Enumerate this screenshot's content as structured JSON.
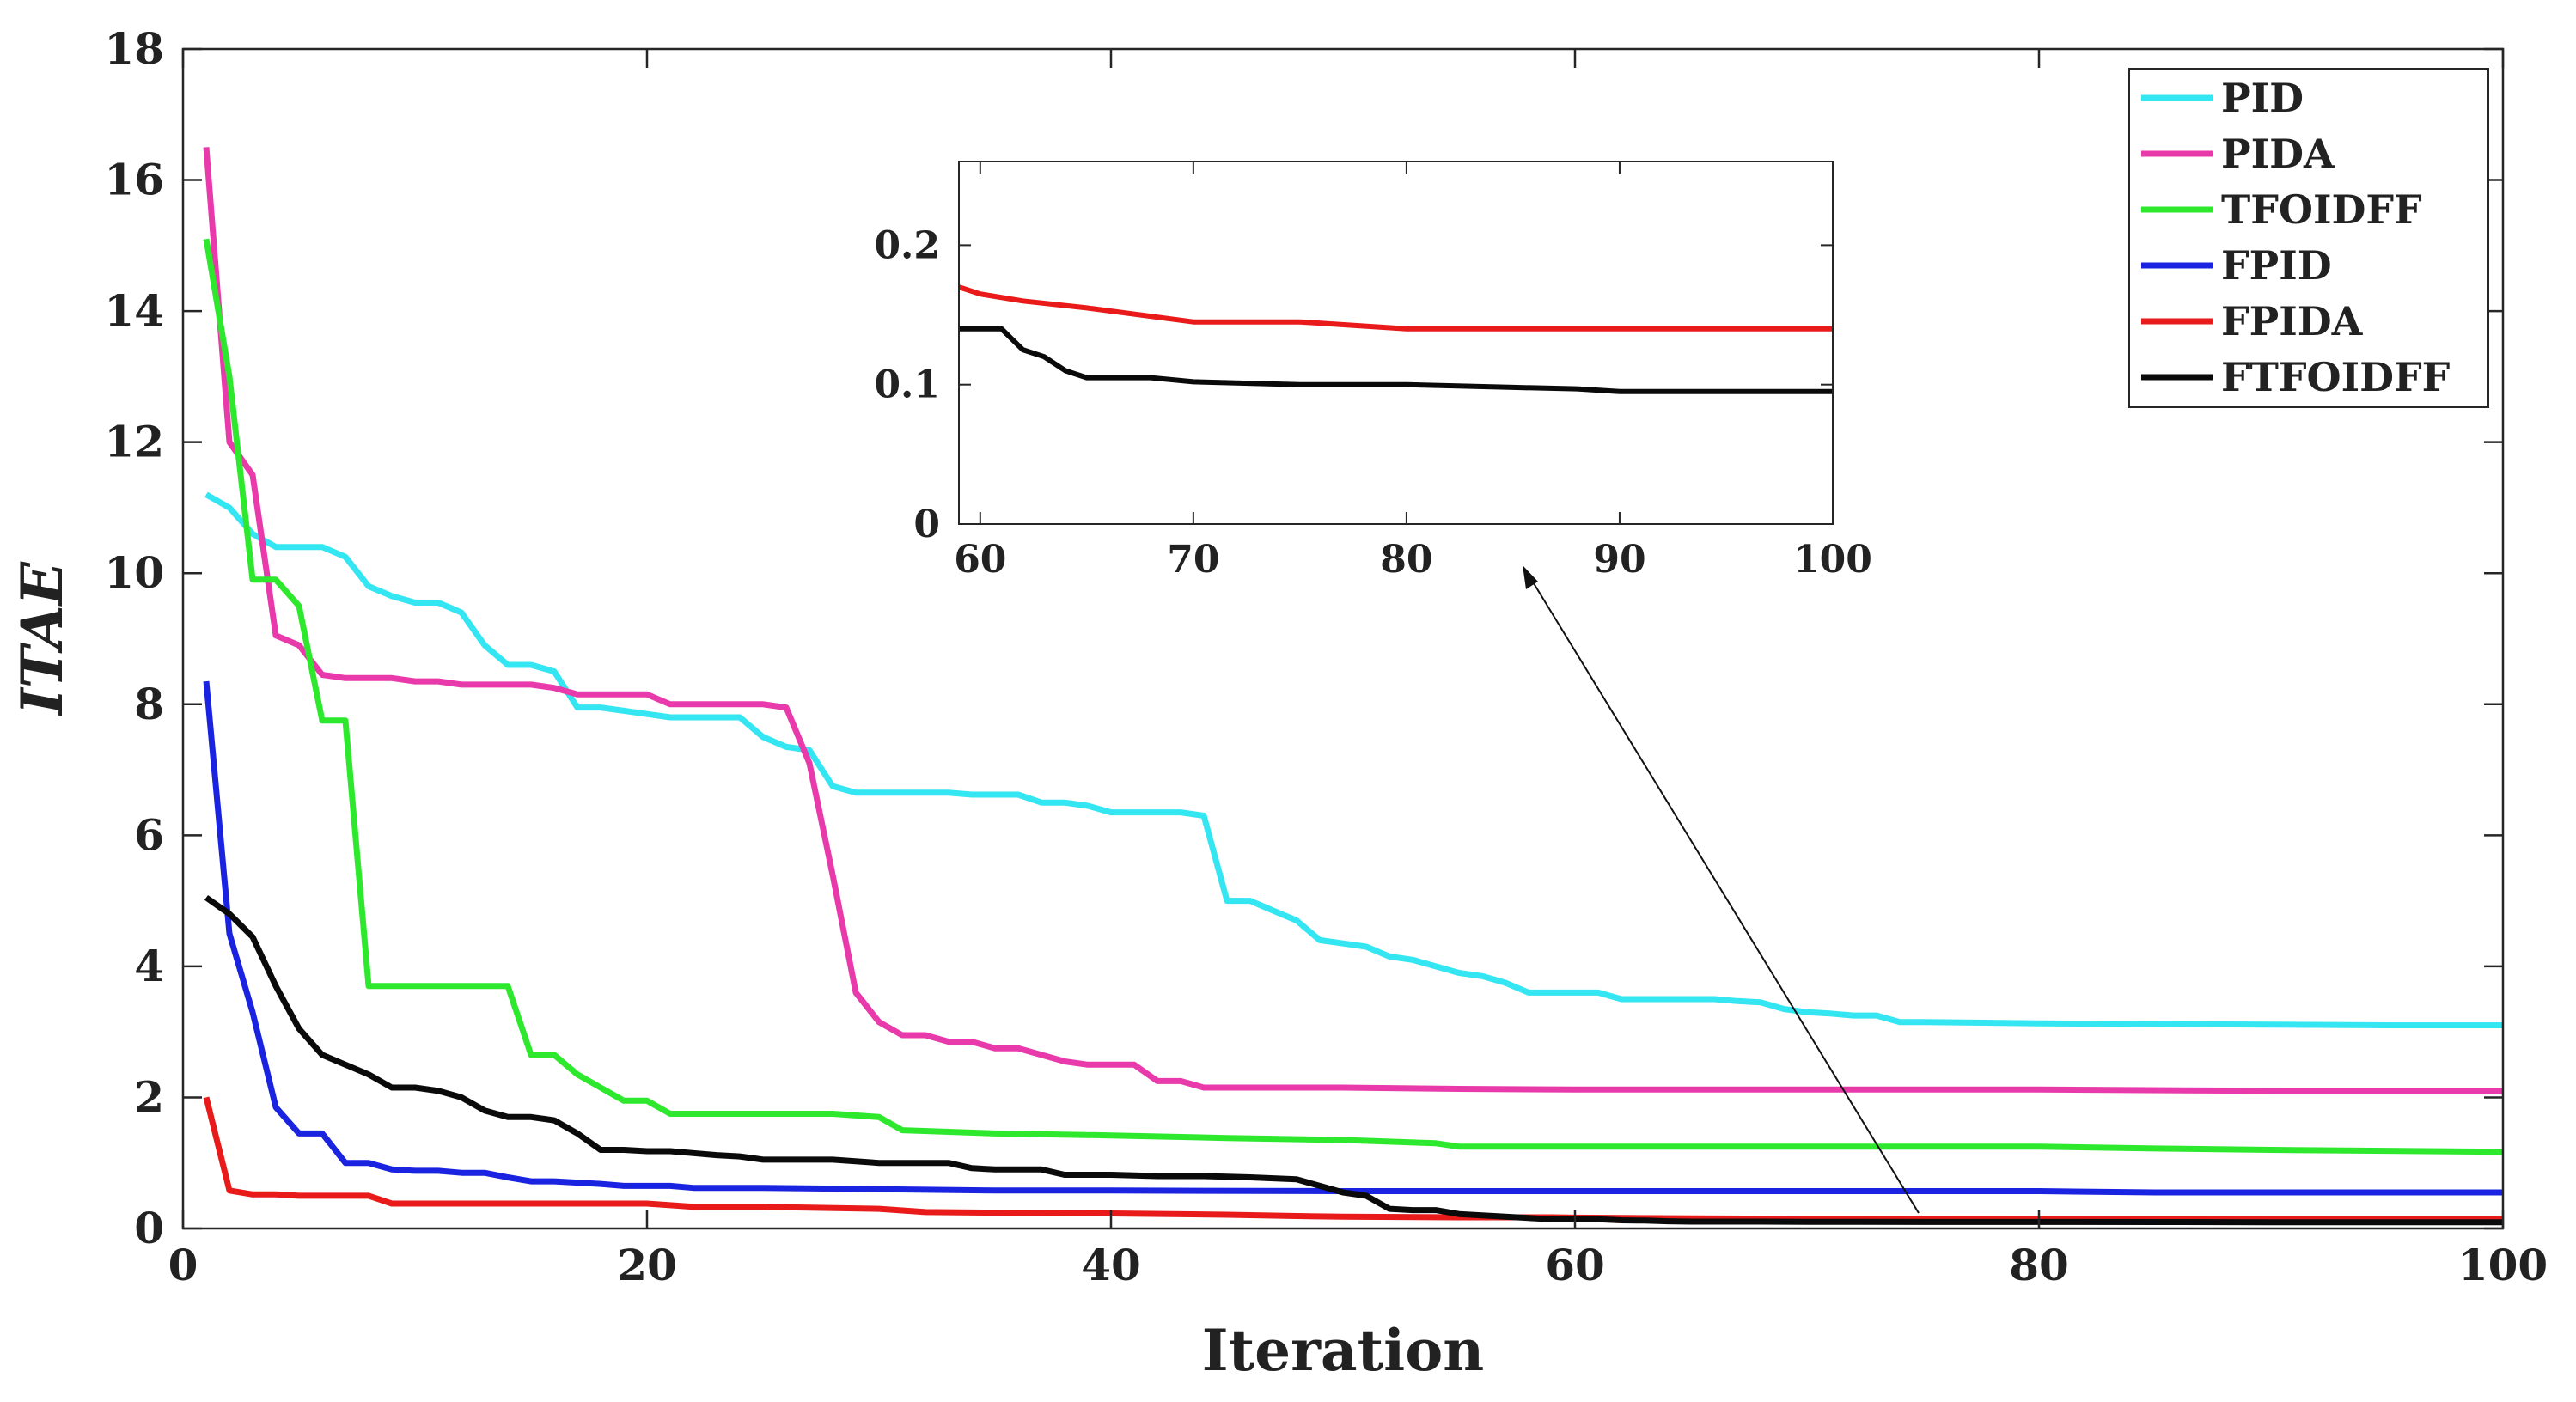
{
  "chart_data": {
    "type": "line",
    "title": "",
    "xlabel": "Iteration",
    "ylabel": "ITAE",
    "xlim": [
      0,
      100
    ],
    "ylim": [
      0,
      18
    ],
    "xticks": [
      "0",
      "20",
      "40",
      "60",
      "80",
      "100"
    ],
    "yticks": [
      "0",
      "2",
      "4",
      "6",
      "8",
      "10",
      "12",
      "14",
      "16",
      "18"
    ],
    "grid": false,
    "legend_position": "top-right",
    "series": [
      {
        "name": "PID",
        "color": "#33e6f2",
        "points": [
          [
            1,
            11.2
          ],
          [
            2,
            11.0
          ],
          [
            3,
            10.6
          ],
          [
            4,
            10.4
          ],
          [
            5,
            10.4
          ],
          [
            6,
            10.4
          ],
          [
            7,
            10.25
          ],
          [
            8,
            9.8
          ],
          [
            9,
            9.65
          ],
          [
            10,
            9.55
          ],
          [
            11,
            9.55
          ],
          [
            12,
            9.4
          ],
          [
            13,
            8.9
          ],
          [
            14,
            8.6
          ],
          [
            15,
            8.6
          ],
          [
            16,
            8.5
          ],
          [
            17,
            7.95
          ],
          [
            18,
            7.95
          ],
          [
            19,
            7.9
          ],
          [
            20,
            7.85
          ],
          [
            21,
            7.8
          ],
          [
            22,
            7.8
          ],
          [
            23,
            7.8
          ],
          [
            24,
            7.8
          ],
          [
            25,
            7.5
          ],
          [
            26,
            7.35
          ],
          [
            27,
            7.3
          ],
          [
            28,
            6.75
          ],
          [
            29,
            6.65
          ],
          [
            30,
            6.65
          ],
          [
            31,
            6.65
          ],
          [
            32,
            6.65
          ],
          [
            33,
            6.65
          ],
          [
            34,
            6.62
          ],
          [
            35,
            6.62
          ],
          [
            36,
            6.62
          ],
          [
            37,
            6.5
          ],
          [
            38,
            6.5
          ],
          [
            39,
            6.45
          ],
          [
            40,
            6.35
          ],
          [
            41,
            6.35
          ],
          [
            42,
            6.35
          ],
          [
            43,
            6.35
          ],
          [
            44,
            6.3
          ],
          [
            45,
            5.0
          ],
          [
            46,
            5.0
          ],
          [
            47,
            4.85
          ],
          [
            48,
            4.7
          ],
          [
            49,
            4.4
          ],
          [
            50,
            4.35
          ],
          [
            51,
            4.3
          ],
          [
            52,
            4.15
          ],
          [
            53,
            4.1
          ],
          [
            54,
            4.0
          ],
          [
            55,
            3.9
          ],
          [
            56,
            3.85
          ],
          [
            57,
            3.75
          ],
          [
            58,
            3.6
          ],
          [
            59,
            3.6
          ],
          [
            60,
            3.6
          ],
          [
            61,
            3.6
          ],
          [
            62,
            3.5
          ],
          [
            63,
            3.5
          ],
          [
            64,
            3.5
          ],
          [
            65,
            3.5
          ],
          [
            66,
            3.5
          ],
          [
            67,
            3.47
          ],
          [
            68,
            3.45
          ],
          [
            69,
            3.35
          ],
          [
            70,
            3.3
          ],
          [
            71,
            3.28
          ],
          [
            72,
            3.25
          ],
          [
            73,
            3.25
          ],
          [
            74,
            3.15
          ],
          [
            75,
            3.15
          ],
          [
            80,
            3.13
          ],
          [
            85,
            3.12
          ],
          [
            90,
            3.11
          ],
          [
            95,
            3.1
          ],
          [
            100,
            3.1
          ]
        ]
      },
      {
        "name": "PIDA",
        "color": "#e83aaa",
        "points": [
          [
            1,
            16.5
          ],
          [
            2,
            12.0
          ],
          [
            3,
            11.5
          ],
          [
            4,
            9.05
          ],
          [
            5,
            8.9
          ],
          [
            6,
            8.45
          ],
          [
            7,
            8.4
          ],
          [
            8,
            8.4
          ],
          [
            9,
            8.4
          ],
          [
            10,
            8.35
          ],
          [
            11,
            8.35
          ],
          [
            12,
            8.3
          ],
          [
            13,
            8.3
          ],
          [
            14,
            8.3
          ],
          [
            15,
            8.3
          ],
          [
            16,
            8.25
          ],
          [
            17,
            8.15
          ],
          [
            18,
            8.15
          ],
          [
            19,
            8.15
          ],
          [
            20,
            8.15
          ],
          [
            21,
            8.0
          ],
          [
            22,
            8.0
          ],
          [
            23,
            8.0
          ],
          [
            24,
            8.0
          ],
          [
            25,
            8.0
          ],
          [
            26,
            7.95
          ],
          [
            27,
            7.1
          ],
          [
            28,
            5.4
          ],
          [
            29,
            3.6
          ],
          [
            30,
            3.15
          ],
          [
            31,
            2.95
          ],
          [
            32,
            2.95
          ],
          [
            33,
            2.85
          ],
          [
            34,
            2.85
          ],
          [
            35,
            2.75
          ],
          [
            36,
            2.75
          ],
          [
            37,
            2.65
          ],
          [
            38,
            2.55
          ],
          [
            39,
            2.5
          ],
          [
            40,
            2.5
          ],
          [
            41,
            2.5
          ],
          [
            42,
            2.25
          ],
          [
            43,
            2.25
          ],
          [
            44,
            2.15
          ],
          [
            45,
            2.15
          ],
          [
            50,
            2.15
          ],
          [
            55,
            2.13
          ],
          [
            60,
            2.12
          ],
          [
            70,
            2.12
          ],
          [
            80,
            2.12
          ],
          [
            90,
            2.1
          ],
          [
            100,
            2.1
          ]
        ]
      },
      {
        "name": "TFOIDFF",
        "color": "#2ee82e",
        "points": [
          [
            1,
            15.1
          ],
          [
            2,
            13.0
          ],
          [
            3,
            9.9
          ],
          [
            4,
            9.9
          ],
          [
            5,
            9.5
          ],
          [
            6,
            7.75
          ],
          [
            7,
            7.75
          ],
          [
            8,
            3.7
          ],
          [
            9,
            3.7
          ],
          [
            10,
            3.7
          ],
          [
            11,
            3.7
          ],
          [
            12,
            3.7
          ],
          [
            13,
            3.7
          ],
          [
            14,
            3.7
          ],
          [
            15,
            2.65
          ],
          [
            16,
            2.65
          ],
          [
            17,
            2.35
          ],
          [
            18,
            2.15
          ],
          [
            19,
            1.95
          ],
          [
            20,
            1.95
          ],
          [
            21,
            1.75
          ],
          [
            22,
            1.75
          ],
          [
            25,
            1.75
          ],
          [
            28,
            1.75
          ],
          [
            30,
            1.7
          ],
          [
            31,
            1.5
          ],
          [
            35,
            1.45
          ],
          [
            40,
            1.42
          ],
          [
            45,
            1.38
          ],
          [
            50,
            1.35
          ],
          [
            54,
            1.3
          ],
          [
            55,
            1.25
          ],
          [
            60,
            1.25
          ],
          [
            70,
            1.25
          ],
          [
            80,
            1.25
          ],
          [
            85,
            1.22
          ],
          [
            90,
            1.2
          ],
          [
            100,
            1.17
          ]
        ]
      },
      {
        "name": "FPID",
        "color": "#1a24e0",
        "points": [
          [
            1,
            8.35
          ],
          [
            2,
            4.5
          ],
          [
            3,
            3.3
          ],
          [
            4,
            1.85
          ],
          [
            5,
            1.45
          ],
          [
            6,
            1.45
          ],
          [
            7,
            1.0
          ],
          [
            8,
            1.0
          ],
          [
            9,
            0.9
          ],
          [
            10,
            0.88
          ],
          [
            11,
            0.88
          ],
          [
            12,
            0.85
          ],
          [
            13,
            0.85
          ],
          [
            14,
            0.78
          ],
          [
            15,
            0.72
          ],
          [
            16,
            0.72
          ],
          [
            17,
            0.7
          ],
          [
            18,
            0.68
          ],
          [
            19,
            0.65
          ],
          [
            20,
            0.65
          ],
          [
            21,
            0.65
          ],
          [
            22,
            0.62
          ],
          [
            25,
            0.62
          ],
          [
            30,
            0.6
          ],
          [
            35,
            0.58
          ],
          [
            40,
            0.58
          ],
          [
            50,
            0.57
          ],
          [
            60,
            0.57
          ],
          [
            70,
            0.57
          ],
          [
            80,
            0.57
          ],
          [
            85,
            0.55
          ],
          [
            90,
            0.55
          ],
          [
            100,
            0.55
          ]
        ]
      },
      {
        "name": "FPIDA",
        "color": "#e81a1a",
        "points": [
          [
            1,
            2.0
          ],
          [
            2,
            0.58
          ],
          [
            3,
            0.52
          ],
          [
            4,
            0.52
          ],
          [
            5,
            0.5
          ],
          [
            6,
            0.5
          ],
          [
            8,
            0.5
          ],
          [
            9,
            0.38
          ],
          [
            10,
            0.38
          ],
          [
            15,
            0.38
          ],
          [
            20,
            0.38
          ],
          [
            22,
            0.33
          ],
          [
            25,
            0.33
          ],
          [
            30,
            0.3
          ],
          [
            32,
            0.25
          ],
          [
            35,
            0.24
          ],
          [
            40,
            0.23
          ],
          [
            45,
            0.21
          ],
          [
            48,
            0.19
          ],
          [
            50,
            0.18
          ],
          [
            55,
            0.17
          ],
          [
            59,
            0.17
          ],
          [
            60,
            0.165
          ],
          [
            62,
            0.16
          ],
          [
            65,
            0.155
          ],
          [
            70,
            0.145
          ],
          [
            75,
            0.145
          ],
          [
            80,
            0.14
          ],
          [
            85,
            0.14
          ],
          [
            90,
            0.14
          ],
          [
            100,
            0.14
          ]
        ]
      },
      {
        "name": "FTFOIDFF",
        "color": "#0a0a0a",
        "points": [
          [
            1,
            5.05
          ],
          [
            2,
            4.8
          ],
          [
            3,
            4.45
          ],
          [
            4,
            3.7
          ],
          [
            5,
            3.05
          ],
          [
            6,
            2.65
          ],
          [
            7,
            2.5
          ],
          [
            8,
            2.35
          ],
          [
            9,
            2.15
          ],
          [
            10,
            2.15
          ],
          [
            11,
            2.1
          ],
          [
            12,
            2.0
          ],
          [
            13,
            1.8
          ],
          [
            14,
            1.7
          ],
          [
            15,
            1.7
          ],
          [
            16,
            1.65
          ],
          [
            17,
            1.45
          ],
          [
            18,
            1.2
          ],
          [
            19,
            1.2
          ],
          [
            20,
            1.18
          ],
          [
            21,
            1.18
          ],
          [
            22,
            1.15
          ],
          [
            23,
            1.12
          ],
          [
            24,
            1.1
          ],
          [
            25,
            1.05
          ],
          [
            28,
            1.05
          ],
          [
            30,
            1.0
          ],
          [
            33,
            1.0
          ],
          [
            34,
            0.92
          ],
          [
            35,
            0.9
          ],
          [
            37,
            0.9
          ],
          [
            38,
            0.82
          ],
          [
            40,
            0.82
          ],
          [
            42,
            0.8
          ],
          [
            44,
            0.8
          ],
          [
            46,
            0.78
          ],
          [
            48,
            0.75
          ],
          [
            49,
            0.65
          ],
          [
            50,
            0.55
          ],
          [
            51,
            0.5
          ],
          [
            52,
            0.3
          ],
          [
            53,
            0.28
          ],
          [
            54,
            0.28
          ],
          [
            55,
            0.22
          ],
          [
            57,
            0.18
          ],
          [
            59,
            0.14
          ],
          [
            61,
            0.14
          ],
          [
            62,
            0.125
          ],
          [
            63,
            0.12
          ],
          [
            64,
            0.11
          ],
          [
            65,
            0.105
          ],
          [
            68,
            0.105
          ],
          [
            70,
            0.102
          ],
          [
            75,
            0.1
          ],
          [
            80,
            0.1
          ],
          [
            85,
            0.098
          ],
          [
            88,
            0.097
          ],
          [
            90,
            0.095
          ],
          [
            95,
            0.095
          ],
          [
            100,
            0.095
          ]
        ]
      }
    ],
    "inset": {
      "xlim": [
        59,
        100
      ],
      "ylim": [
        0,
        0.26
      ],
      "xticks": [
        "60",
        "70",
        "80",
        "90",
        "100"
      ],
      "yticks": [
        "0",
        "0.1",
        "0.2"
      ],
      "series": [
        "FPIDA",
        "FTFOIDFF"
      ]
    }
  }
}
